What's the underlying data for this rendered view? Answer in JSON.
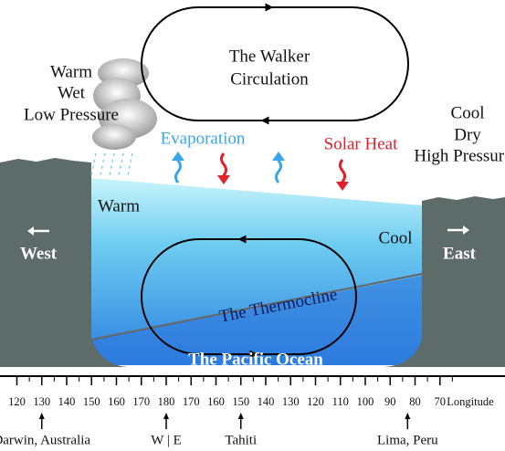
{
  "labels": {
    "warm_left": [
      "Warm",
      "Wet",
      "Low Pressure"
    ],
    "walker": [
      "The Walker",
      "Circulation"
    ],
    "cool_right": [
      "Cool",
      "Dry",
      "High Pressure"
    ],
    "evaporation": "Evaporation",
    "solar_heat": "Solar Heat",
    "warm_water": "Warm",
    "cool_water": "Cool",
    "west": "West",
    "east": "East",
    "thermocline": "The Thermocline",
    "ocean": "The Pacific Ocean"
  },
  "axis": {
    "ticks": [
      "120",
      "130",
      "140",
      "150",
      "160",
      "170",
      "180",
      "170",
      "160",
      "150",
      "140",
      "130",
      "120",
      "110",
      "100",
      "90",
      "80",
      "70"
    ],
    "label": "Longitude"
  },
  "locations": [
    {
      "name": "Darwin, Australia",
      "tick": 1
    },
    {
      "name": "W | E",
      "tick": 6
    },
    {
      "name": "Tahiti",
      "tick": 9
    },
    {
      "name": "Lima, Peru",
      "tick": 15.7
    }
  ]
}
